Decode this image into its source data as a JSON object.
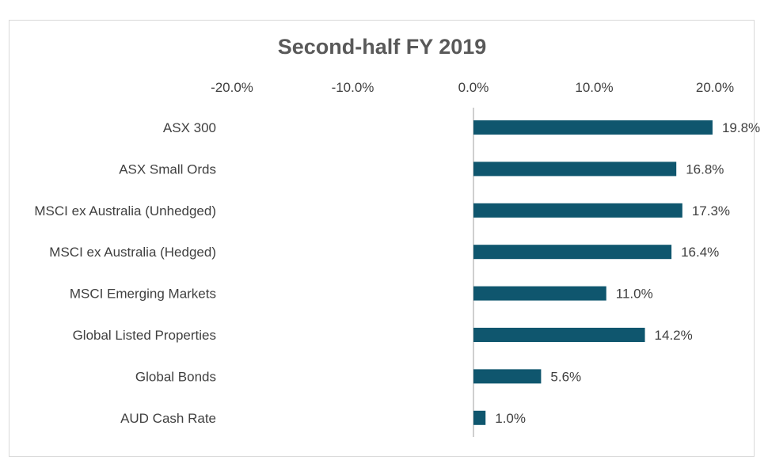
{
  "chart_data": {
    "type": "bar",
    "orientation": "horizontal",
    "title": "Second-half FY 2019",
    "xlabel": "",
    "ylabel": "",
    "xlim": [
      -0.2,
      0.2
    ],
    "x_ticks": [
      -0.2,
      -0.1,
      0.0,
      0.1,
      0.2
    ],
    "x_tick_labels": [
      "-20.0%",
      "-10.0%",
      "0.0%",
      "10.0%",
      "20.0%"
    ],
    "axis_position": "top",
    "grid": false,
    "categories": [
      "ASX 300",
      "ASX Small Ords",
      "MSCI ex Australia (Unhedged)",
      "MSCI ex Australia (Hedged)",
      "MSCI Emerging Markets",
      "Global Listed Properties",
      "Global Bonds",
      "AUD Cash Rate"
    ],
    "values": [
      0.198,
      0.168,
      0.173,
      0.164,
      0.11,
      0.142,
      0.056,
      0.01
    ],
    "value_labels": [
      "19.8%",
      "16.8%",
      "17.3%",
      "16.4%",
      "11.0%",
      "14.2%",
      "5.6%",
      "1.0%"
    ],
    "colors": {
      "bar": "#0f566e",
      "axis": "#bfbfbf",
      "text": "#404040",
      "title": "#595959"
    }
  }
}
